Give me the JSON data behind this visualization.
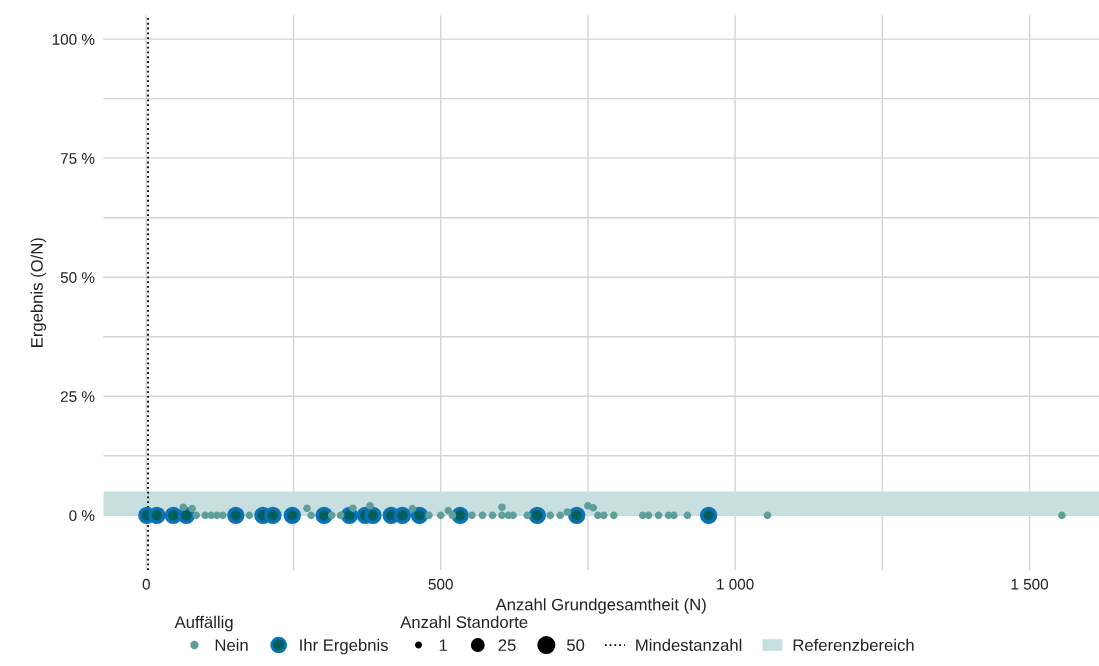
{
  "chart_data": {
    "type": "scatter",
    "xlabel": "Anzahl Grundgesamtheit (N)",
    "ylabel": "Ergebnis (O/N)",
    "legend_title": "Auffällig",
    "annotations": [
      "Anzahl Standorte",
      "1",
      "25",
      "50"
    ],
    "series": [
      {
        "name": "Nein",
        "color": "#5e9e9b",
        "x": [
          63,
          78,
          85,
          100,
          110,
          120,
          130,
          175,
          273,
          280,
          315,
          330,
          351,
          380,
          452,
          480,
          500,
          513,
          520,
          553,
          571,
          588,
          604,
          604,
          615,
          623,
          647,
          686,
          703,
          715,
          750,
          759,
          767,
          777,
          794,
          843,
          853,
          870,
          887,
          896,
          919,
          1055,
          1555
        ],
        "values": [
          1.7,
          1.4,
          0,
          0,
          0,
          0,
          0,
          0,
          1.5,
          0,
          0,
          0,
          1.5,
          2.0,
          1.4,
          0,
          0,
          1.0,
          0,
          0,
          0,
          0,
          0,
          1.7,
          0,
          0,
          0,
          0,
          0,
          0.7,
          2.0,
          1.6,
          0,
          0,
          0,
          0,
          0,
          0,
          0,
          0,
          0,
          0,
          0
        ]
      },
      {
        "name": "Ihr Ergebnis",
        "color": "#0a72b8",
        "x": [
          1,
          18,
          46,
          68,
          152,
          198,
          215,
          248,
          302,
          345,
          372,
          385,
          416,
          435,
          464,
          533,
          664,
          731,
          955
        ],
        "values": [
          0,
          0,
          0,
          0,
          0,
          0,
          0,
          0,
          0,
          0,
          0,
          0,
          0,
          0,
          0,
          0,
          0,
          0,
          0
        ]
      }
    ],
    "xlim": [
      -73,
      1618
    ],
    "ylim": [
      -11.5,
      105
    ],
    "xticks": [
      0,
      {
        "value": 250,
        "label": null
      },
      500,
      {
        "value": 750,
        "label": null
      },
      {
        "value": 1000,
        "label": "1 000"
      },
      {
        "value": 1250,
        "label": null
      },
      {
        "value": 1500,
        "label": "1 500"
      }
    ],
    "yticks": [
      {
        "value": 0,
        "label": "0 %"
      },
      {
        "value": 12.5,
        "label": null
      },
      {
        "value": 25,
        "label": "25 %"
      },
      {
        "value": 37.5,
        "label": null
      },
      {
        "value": 50,
        "label": "50 %"
      },
      {
        "value": 62.5,
        "label": null
      },
      {
        "value": 75,
        "label": "75 %"
      },
      {
        "value": 87.5,
        "label": null
      },
      {
        "value": 100,
        "label": "100 %"
      }
    ],
    "ref_lines": [
      {
        "axis": "x",
        "value": 3,
        "label": "Mindestanzahl",
        "color": "#000000",
        "line_style": "dotted"
      }
    ],
    "bands": [
      {
        "axis": "y",
        "from": 0,
        "to": 5,
        "label": "Referenzbereich",
        "color": "#c8dfe0"
      }
    ],
    "grid": true,
    "legend": "bottom"
  }
}
